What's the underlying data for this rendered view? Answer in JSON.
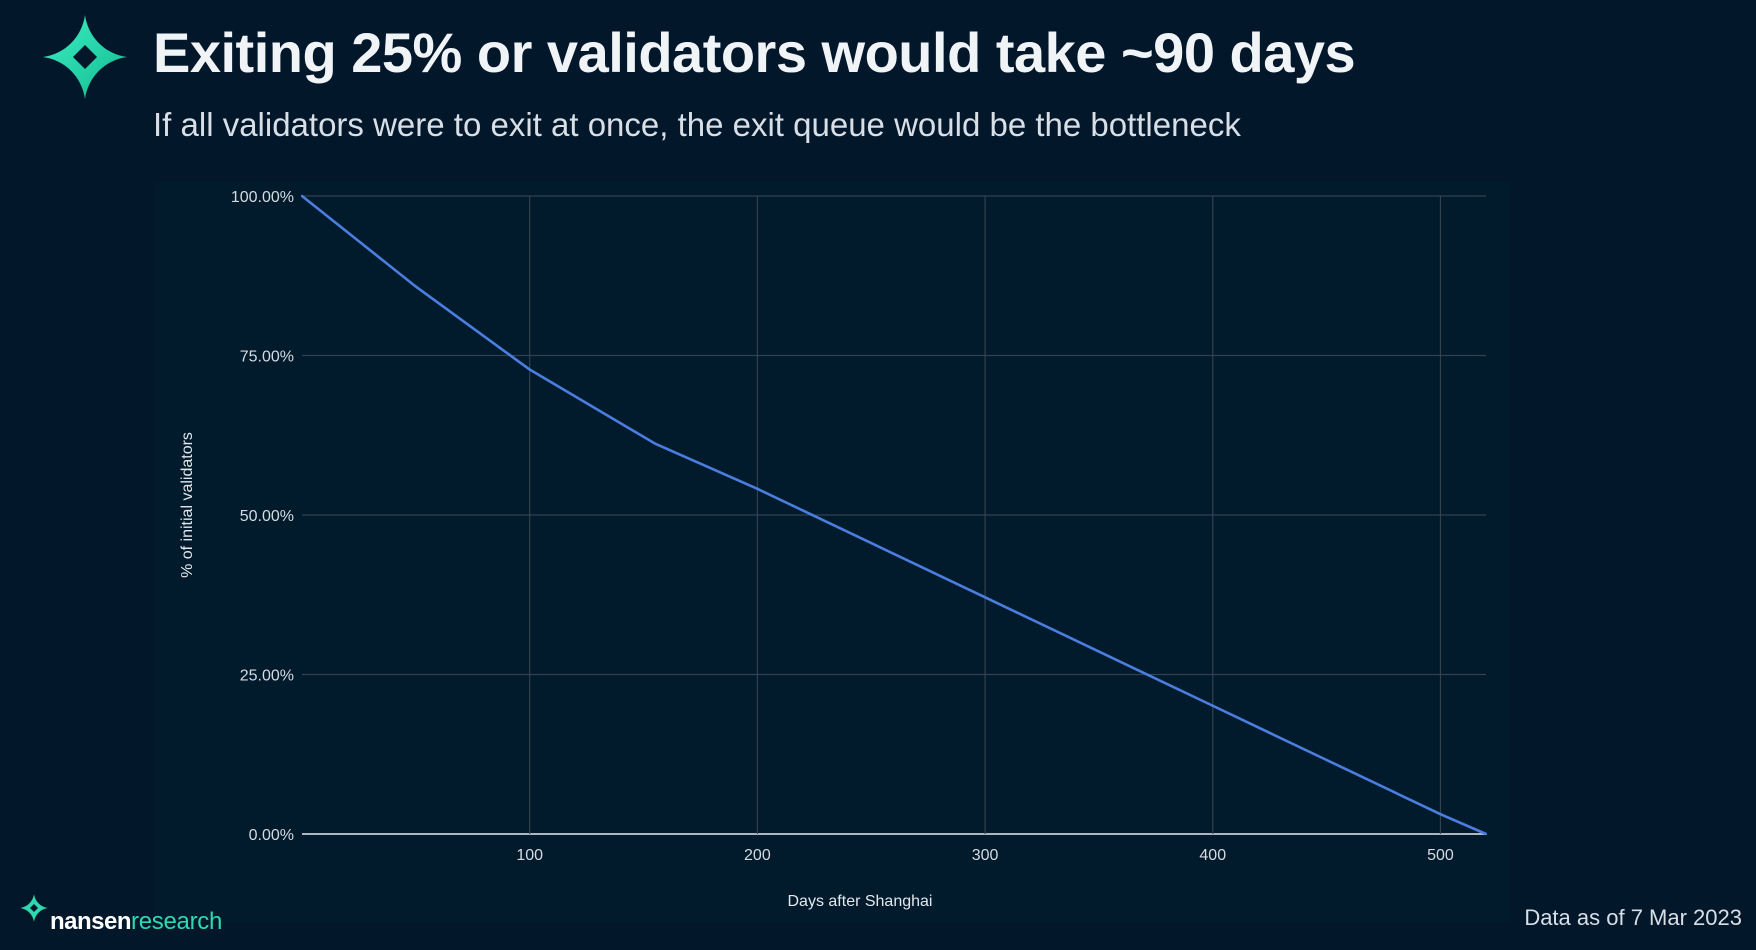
{
  "header": {
    "title": "Exiting 25% or validators would take ~90 days",
    "subtitle": "If all validators were to exit at once, the exit queue would be the bottleneck"
  },
  "footer": {
    "brand_primary": "nansen",
    "brand_secondary": "research",
    "data_as_of": "Data as of 7 Mar 2023"
  },
  "colors": {
    "background": "#03172b",
    "panel": "#011a2c",
    "line": "#4a7ee0",
    "accent": "#2fd9b0",
    "grid": "#3b4a57"
  },
  "icons": {
    "logo": "nansen-star-icon",
    "brand": "nansen-star-icon"
  },
  "chart_data": {
    "type": "line",
    "xlabel": "Days after Shanghai",
    "ylabel": "% of initial validators",
    "xlim": [
      0,
      520
    ],
    "ylim": [
      0,
      100
    ],
    "x_ticks": [
      100,
      200,
      300,
      400,
      500
    ],
    "x_tick_labels": [
      "100",
      "200",
      "300",
      "400",
      "500"
    ],
    "y_ticks": [
      0,
      25,
      50,
      75,
      100
    ],
    "y_tick_labels": [
      "0.00%",
      "25.00%",
      "50.00%",
      "75.00%",
      "100.00%"
    ],
    "grid": true,
    "series": [
      {
        "x": [
          0,
          50,
          100,
          155,
          200,
          250,
          300,
          350,
          400,
          450,
          500,
          520
        ],
        "y": [
          100,
          85.8,
          72.8,
          61.2,
          54.1,
          45.6,
          37.1,
          28.6,
          20.1,
          11.6,
          3.1,
          0
        ]
      }
    ]
  }
}
